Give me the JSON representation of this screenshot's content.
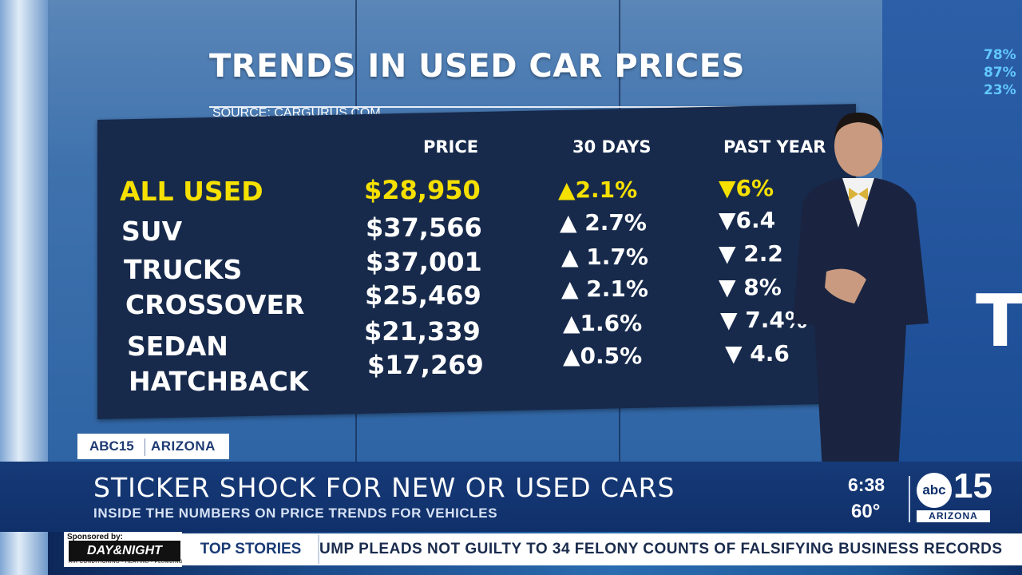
{
  "graphic": {
    "title": "TRENDS IN USED CAR PRICES",
    "source": "SOURCE: CARGURUS.COM",
    "headers": {
      "price": "PRICE",
      "thirty_days": "30 DAYS",
      "past_year": "PAST YEAR"
    },
    "rows": [
      {
        "category": "ALL USED",
        "price": "$28,950",
        "thirty_days": "▲2.1%",
        "past_year": "▼6%",
        "highlight": true
      },
      {
        "category": "SUV",
        "price": "$37,566",
        "thirty_days": "▲ 2.7%",
        "past_year": "▼6.4"
      },
      {
        "category": "TRUCKS",
        "price": "$37,001",
        "thirty_days": "▲ 1.7%",
        "past_year": "▼ 2.2"
      },
      {
        "category": "CROSSOVER",
        "price": "$25,469",
        "thirty_days": "▲ 2.1%",
        "past_year": "▼ 8%"
      },
      {
        "category": "SEDAN",
        "price": "$21,339",
        "thirty_days": "▲1.6%",
        "past_year": "▼ 7.4%"
      },
      {
        "category": "HATCHBACK",
        "price": "$17,269",
        "thirty_days": "▲0.5%",
        "past_year": "▼ 4.6"
      }
    ],
    "highlight_color": "#f5e000"
  },
  "side_screen": {
    "percents": [
      "78%",
      "87%",
      "23%"
    ],
    "letter": "T"
  },
  "lower_third": {
    "station_tag": "ABC15",
    "location_tag": "ARIZONA",
    "headline": "STICKER SHOCK FOR NEW OR USED CARS",
    "subheadline": "INSIDE THE NUMBERS ON PRICE TRENDS FOR VEHICLES",
    "time": "6:38",
    "temperature": "60°"
  },
  "logo": {
    "network": "abc",
    "channel": "15",
    "market": "ARIZONA"
  },
  "ticker": {
    "sponsor_label": "Sponsored by:",
    "sponsor_name": "DAY&NIGHT",
    "sponsor_sub": "AIR CONDITIONING • HEATING • PLUMBING",
    "section": "TOP STORIES",
    "text": "UMP PLEADS NOT GUILTY TO 34 FELONY COUNTS OF FALSIFYING BUSINESS RECORDS"
  }
}
